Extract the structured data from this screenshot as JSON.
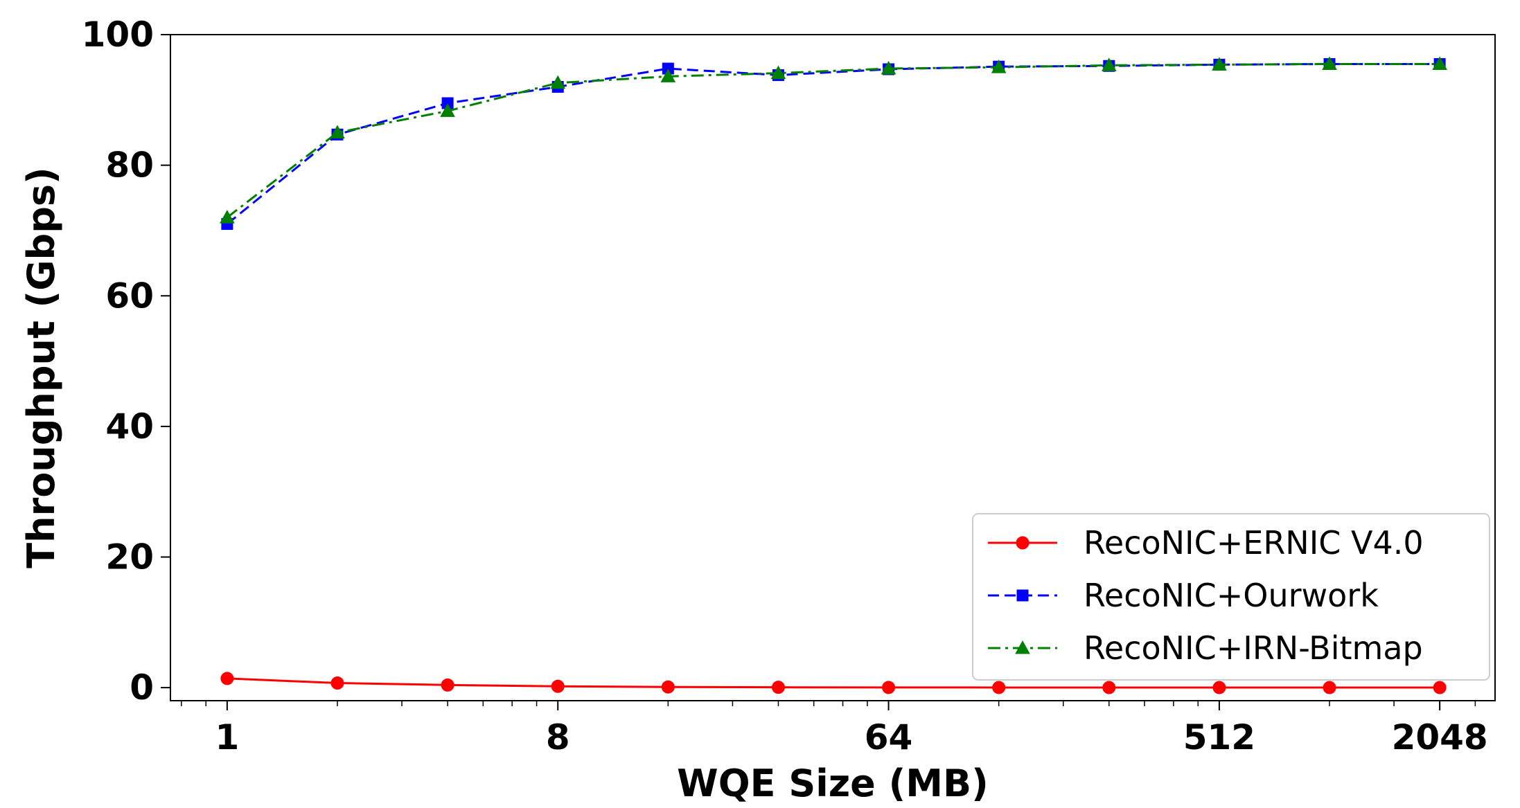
{
  "chart_data": {
    "type": "line",
    "title": "",
    "xlabel": "WQE Size (MB)",
    "ylabel": "Throughput (Gbps)",
    "x_scale": "log2",
    "xlim": [
      0.7,
      2900
    ],
    "ylim": [
      -2,
      100
    ],
    "x_ticks": [
      1,
      8,
      64,
      512,
      2048
    ],
    "x_tick_labels": [
      "1",
      "8",
      "64",
      "512",
      "2048"
    ],
    "y_ticks": [
      0,
      20,
      40,
      60,
      80,
      100
    ],
    "y_tick_labels": [
      "0",
      "20",
      "40",
      "60",
      "80",
      "100"
    ],
    "grid": false,
    "legend_position": "lower right",
    "x": [
      1,
      2,
      4,
      8,
      16,
      32,
      64,
      128,
      256,
      512,
      1024,
      2048
    ],
    "series": [
      {
        "name": "RecoNIC+ERNIC V4.0",
        "color": "#ff0000",
        "marker": "circle",
        "line_style": "solid",
        "values": [
          1.4,
          0.7,
          0.4,
          0.2,
          0.1,
          0.05,
          0.03,
          0.02,
          0.01,
          0.01,
          0.01,
          0.01
        ]
      },
      {
        "name": "RecoNIC+Ourwork",
        "color": "#0000ff",
        "marker": "square",
        "line_style": "dashed",
        "values": [
          71.0,
          84.7,
          89.5,
          92.0,
          94.8,
          93.8,
          94.7,
          95.1,
          95.2,
          95.4,
          95.5,
          95.5
        ]
      },
      {
        "name": "RecoNIC+IRN-Bitmap",
        "color": "#008000",
        "marker": "triangle",
        "line_style": "dashdot",
        "values": [
          72.0,
          85.0,
          88.3,
          92.6,
          93.6,
          94.1,
          94.8,
          95.0,
          95.3,
          95.4,
          95.5,
          95.5
        ]
      }
    ]
  }
}
